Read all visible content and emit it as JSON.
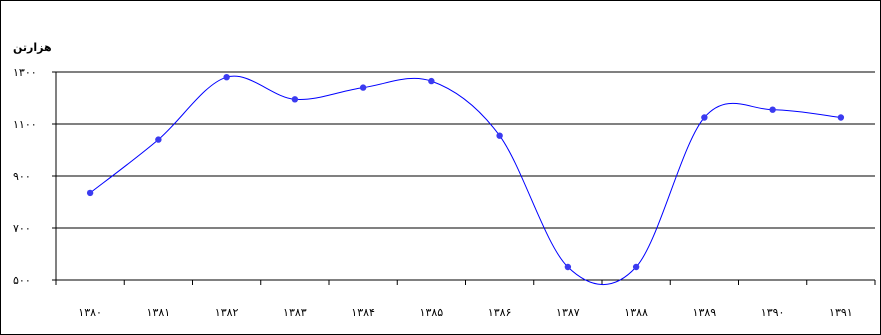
{
  "chart_data": {
    "type": "line",
    "title": "",
    "xlabel": "",
    "ylabel": "هزارتن",
    "categories": [
      "۱۳۸۰",
      "۱۳۸۱",
      "۱۳۸۲",
      "۱۳۸۳",
      "۱۳۸۴",
      "۱۳۸۵",
      "۱۳۸۶",
      "۱۳۸۷",
      "۱۳۸۸",
      "۱۳۸۹",
      "۱۳۹۰",
      "۱۳۹۱"
    ],
    "values": [
      835,
      1040,
      1280,
      1195,
      1240,
      1265,
      1055,
      550,
      550,
      1125,
      1155,
      1125
    ],
    "ylim": [
      500,
      1300
    ],
    "yticks": [
      500,
      700,
      900,
      1100,
      1300
    ],
    "ytick_labels": [
      "۵۰۰",
      "۷۰۰",
      "۹۰۰",
      "۱۱۰۰",
      "۱۳۰۰"
    ],
    "grid": true,
    "smooth": true,
    "colors": {
      "line": "#0000ff",
      "marker": "#3b3bf0",
      "grid": "#000000",
      "axis": "#000000"
    }
  }
}
